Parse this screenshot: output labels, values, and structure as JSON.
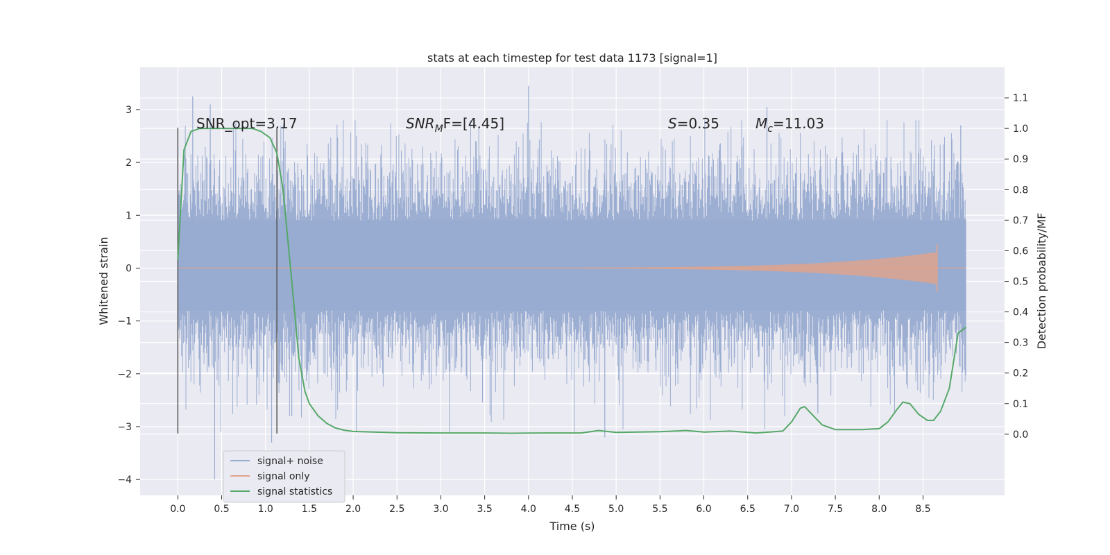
{
  "chart_data": {
    "type": "line",
    "title": "stats at each timestep for test data 1173 [signal=1]",
    "xlabel": "Time (s)",
    "ylabel": "Whitened strain",
    "ylabel_right": "Detection probability/MF",
    "xlim": [
      -0.43,
      9.43
    ],
    "ylim": [
      -4.3,
      3.8
    ],
    "ylim_right": [
      -0.2,
      1.2
    ],
    "x_ticks": [
      "0.0",
      "0.5",
      "1.0",
      "1.5",
      "2.0",
      "2.5",
      "3.0",
      "3.5",
      "4.0",
      "4.5",
      "5.0",
      "5.5",
      "6.0",
      "6.5",
      "7.0",
      "7.5",
      "8.0",
      "8.5"
    ],
    "y_ticks": [
      "−4",
      "−3",
      "−2",
      "−1",
      "0",
      "1",
      "2",
      "3"
    ],
    "y_ticks_right": [
      "0.0",
      "0.1",
      "0.2",
      "0.3",
      "0.4",
      "0.5",
      "0.6",
      "0.7",
      "0.8",
      "0.9",
      "1.0",
      "1.1"
    ],
    "grid": true,
    "legend_position": "lower-left",
    "annotations": {
      "snr_opt": "SNR_opt=3.17",
      "snr_mf_main": "SNR",
      "snr_mf_sub": "M",
      "snr_mf_rest": "F=[4.45]",
      "s_sym": "S",
      "s_val": "=0.35",
      "mc_main": "M",
      "mc_sub": "c",
      "mc_val": "=11.03"
    },
    "markers": [
      0.0,
      1.13
    ],
    "series": [
      {
        "name": "signal+ noise",
        "color": "#98abd0",
        "x_range": [
          0.0,
          8.99
        ],
        "envelope": {
          "core": [
            -0.8,
            0.9
          ],
          "typical_max": 2.4,
          "typical_min": -2.2,
          "max": 3.45,
          "min": -4.0
        }
      },
      {
        "name": "signal only",
        "color": "#e2a48a",
        "x_range": [
          0.0,
          8.99
        ],
        "chirp_peak_x": 8.66,
        "chirp_peak_amplitude": 0.3
      },
      {
        "name": "signal statistics",
        "color": "#55a868",
        "axis": "right",
        "x": [
          0.0,
          0.07,
          0.15,
          0.25,
          0.5,
          0.75,
          0.85,
          0.95,
          1.05,
          1.13,
          1.2,
          1.3,
          1.38,
          1.45,
          1.5,
          1.6,
          1.7,
          1.8,
          1.9,
          2.0,
          2.5,
          3.0,
          3.5,
          3.8,
          4.2,
          4.6,
          4.8,
          5.0,
          5.5,
          5.8,
          6.0,
          6.3,
          6.6,
          6.9,
          7.0,
          7.1,
          7.15,
          7.25,
          7.35,
          7.5,
          7.8,
          8.0,
          8.1,
          8.2,
          8.27,
          8.35,
          8.45,
          8.55,
          8.62,
          8.7,
          8.8,
          8.9,
          8.99
        ],
        "y": [
          0.57,
          0.93,
          0.99,
          1.0,
          1.0,
          1.0,
          1.0,
          0.99,
          0.97,
          0.92,
          0.8,
          0.5,
          0.25,
          0.14,
          0.1,
          0.06,
          0.035,
          0.02,
          0.013,
          0.009,
          0.005,
          0.004,
          0.004,
          0.003,
          0.004,
          0.004,
          0.012,
          0.006,
          0.008,
          0.012,
          0.007,
          0.01,
          0.004,
          0.01,
          0.04,
          0.085,
          0.09,
          0.06,
          0.03,
          0.015,
          0.015,
          0.018,
          0.04,
          0.08,
          0.105,
          0.1,
          0.065,
          0.045,
          0.045,
          0.075,
          0.15,
          0.33,
          0.35
        ]
      }
    ]
  }
}
